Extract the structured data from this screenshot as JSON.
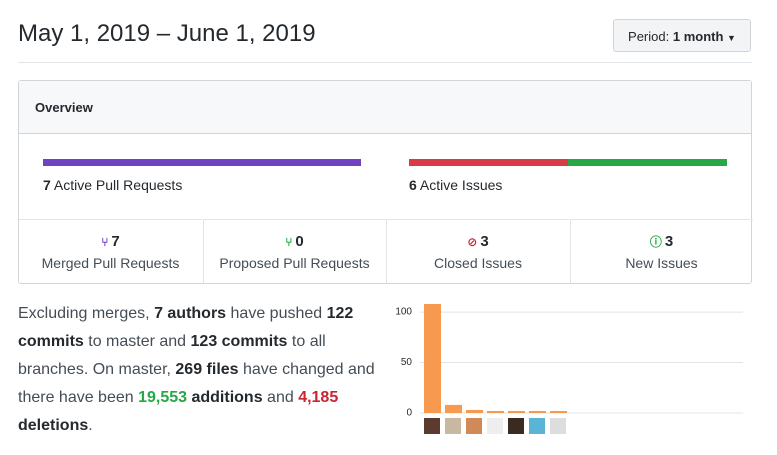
{
  "header": {
    "title": "May 1, 2019 – June 1, 2019",
    "period_label": "Period:",
    "period_value": "1 month"
  },
  "overview": {
    "title": "Overview",
    "pull_requests": {
      "count": 7,
      "label": "Active Pull Requests"
    },
    "issues": {
      "count": 6,
      "label": "Active Issues"
    },
    "stats": [
      {
        "count": 7,
        "label": "Merged Pull Requests"
      },
      {
        "count": 0,
        "label": "Proposed Pull Requests"
      },
      {
        "count": 3,
        "label": "Closed Issues"
      },
      {
        "count": 3,
        "label": "New Issues"
      }
    ]
  },
  "summary": {
    "segments": [
      {
        "text": "Excluding merges, ",
        "style": "plain"
      },
      {
        "text": "7 authors",
        "style": "bold"
      },
      {
        "text": " have pushed ",
        "style": "plain"
      },
      {
        "text": "122 commits",
        "style": "bold"
      },
      {
        "text": " to master and ",
        "style": "plain"
      },
      {
        "text": "123 commits",
        "style": "bold"
      },
      {
        "text": " to all branches. On master, ",
        "style": "plain"
      },
      {
        "text": "269 files",
        "style": "bold"
      },
      {
        "text": " have changed and there have been ",
        "style": "plain"
      },
      {
        "text": "19,553",
        "style": "green"
      },
      {
        "text": " additions",
        "style": "bold"
      },
      {
        "text": " and ",
        "style": "plain"
      },
      {
        "text": "4,185",
        "style": "red"
      },
      {
        "text": " deletions",
        "style": "bold"
      },
      {
        "text": ".",
        "style": "plain"
      }
    ]
  },
  "chart_data": {
    "type": "bar",
    "categories": [
      null,
      null,
      null,
      null,
      null,
      null,
      null
    ],
    "values": [
      108,
      8,
      3,
      2,
      2,
      2,
      2
    ],
    "color": "#f79a4f",
    "ylim": [
      0,
      110
    ],
    "yticks": [
      0,
      50,
      100
    ],
    "grid": true
  }
}
